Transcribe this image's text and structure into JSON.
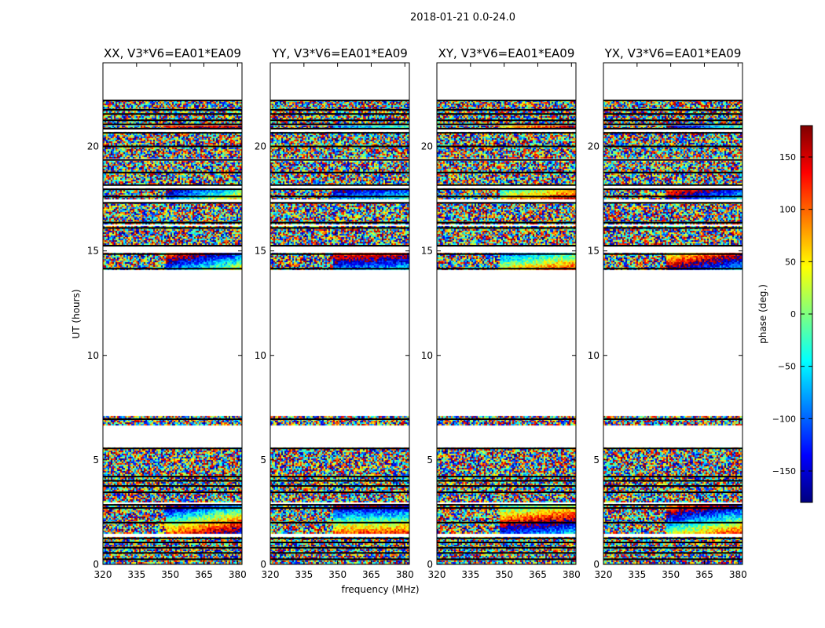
{
  "figure_title": "2018-01-21 0.0-24.0",
  "chart_data": {
    "type": "heatmap",
    "title": "2018-01-21 0.0-24.0",
    "xlabel": "frequency (MHz)",
    "ylabel": "UT (hours)",
    "xlim": [
      320,
      382
    ],
    "ylim": [
      0,
      24
    ],
    "xticks": [
      320,
      335,
      350,
      365,
      380
    ],
    "yticks": [
      0,
      5,
      10,
      15,
      20
    ],
    "colorbar": {
      "label": "phase (deg.)",
      "range": [
        -180,
        180
      ],
      "ticks": [
        150,
        100,
        50,
        0,
        -50,
        -100,
        -150
      ],
      "colors": [
        "#00007f",
        "#0000ff",
        "#007fff",
        "#00ffff",
        "#7fff7f",
        "#ffff00",
        "#ff7f00",
        "#ff0000",
        "#7f0000"
      ]
    },
    "panels": [
      {
        "title": "XX, V3*V6=EA01*EA09",
        "polarization": "XX"
      },
      {
        "title": "YY, V3*V6=EA01*EA09",
        "polarization": "YY"
      },
      {
        "title": "XY, V3*V6=EA01*EA09",
        "polarization": "XY"
      },
      {
        "title": "YX, V3*V6=EA01*EA09",
        "polarization": "YX"
      }
    ],
    "data_blocks_ut": [
      [
        0.0,
        1.3
      ],
      [
        1.5,
        2.9
      ],
      [
        3.0,
        5.6
      ],
      [
        6.7,
        7.1
      ],
      [
        14.1,
        14.9
      ],
      [
        15.2,
        16.2
      ],
      [
        16.3,
        17.3
      ],
      [
        17.5,
        18.0
      ],
      [
        18.2,
        19.3
      ],
      [
        19.4,
        20.7
      ],
      [
        20.9,
        21.0
      ],
      [
        21.1,
        22.2
      ]
    ],
    "flag_lines_ut": [
      0.25,
      0.55,
      0.8,
      1.05,
      1.25,
      2.0,
      2.7,
      2.85,
      3.45,
      3.75,
      4.0,
      4.2,
      5.55,
      6.95,
      14.15,
      14.85,
      15.25,
      16.1,
      16.35,
      17.3,
      17.6,
      17.95,
      18.15,
      18.75,
      19.35,
      20.0,
      20.65,
      20.85,
      21.05,
      21.25,
      21.55,
      21.75,
      22.2
    ]
  }
}
